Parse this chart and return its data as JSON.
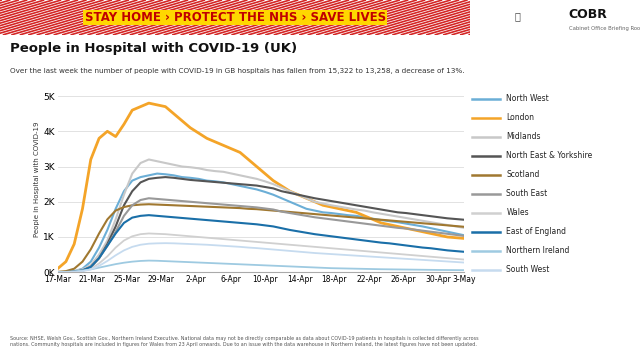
{
  "title": "People in Hospital with COVID-19 (UK)",
  "subtitle": "Over the last week the number of people with COVID-19 in GB hospitals has fallen from 15,322 to 13,258, a decrease of 13%.",
  "ylabel": "People in Hospital with COVID-19",
  "banner_text": "STAY HOME › PROTECT THE NHS › SAVE LIVES",
  "cobr_text": "COBR",
  "cobr_sub": "Cabinet Office Briefing Rooms",
  "footnote": "Source: NHSE, Welsh Gov., Scottish Gov., Northern Ireland Executive. National data may not be directly comparable as data about COVID-19 patients in hospitals is collected differently across\nnations. Community hospitals are included in figures for Wales from 23 April onwards. Due to an issue with the data warehouse in Northern Ireland, the latest figures have not been updated.",
  "x_labels": [
    "17-Mar",
    "21-Mar",
    "25-Mar",
    "29-Mar",
    "2-Apr",
    "6-Apr",
    "10-Apr",
    "14-Apr",
    "18-Apr",
    "22-Apr",
    "26-Apr",
    "30-Apr",
    "3-May"
  ],
  "yticks": [
    0,
    1000,
    2000,
    3000,
    4000,
    5000
  ],
  "ytick_labels": [
    "0K",
    "1K",
    "2K",
    "3K",
    "4K",
    "5K"
  ],
  "series": {
    "North West": {
      "color": "#6baed6",
      "linewidth": 1.5,
      "values": [
        0,
        10,
        30,
        100,
        300,
        700,
        1200,
        1800,
        2300,
        2600,
        2700,
        2750,
        2800,
        2780,
        2750,
        2700,
        2680,
        2650,
        2600,
        2580,
        2550,
        2500,
        2450,
        2400,
        2350,
        2280,
        2200,
        2100,
        2000,
        1900,
        1800,
        1750,
        1700,
        1680,
        1650,
        1620,
        1600,
        1560,
        1520,
        1480,
        1450,
        1420,
        1380,
        1340,
        1300,
        1250,
        1200,
        1150,
        1100,
        1050
      ]
    },
    "London": {
      "color": "#f4a428",
      "linewidth": 2.0,
      "values": [
        100,
        300,
        800,
        1800,
        3200,
        3800,
        4000,
        3850,
        4200,
        4600,
        4700,
        4800,
        4750,
        4700,
        4500,
        4300,
        4100,
        3950,
        3800,
        3700,
        3600,
        3500,
        3400,
        3200,
        3000,
        2800,
        2600,
        2450,
        2300,
        2200,
        2100,
        2000,
        1900,
        1850,
        1800,
        1750,
        1700,
        1600,
        1500,
        1400,
        1350,
        1300,
        1250,
        1200,
        1150,
        1100,
        1050,
        1000,
        980,
        960
      ]
    },
    "Midlands": {
      "color": "#c8c8c8",
      "linewidth": 1.5,
      "values": [
        0,
        10,
        30,
        80,
        200,
        500,
        900,
        1500,
        2200,
        2800,
        3100,
        3200,
        3150,
        3100,
        3050,
        3000,
        2980,
        2950,
        2900,
        2870,
        2850,
        2800,
        2750,
        2700,
        2650,
        2580,
        2500,
        2400,
        2300,
        2200,
        2100,
        2000,
        1950,
        1900,
        1860,
        1820,
        1780,
        1750,
        1700,
        1660,
        1620,
        1580,
        1540,
        1500,
        1460,
        1420,
        1380,
        1340,
        1300,
        1260
      ]
    },
    "North East & Yorkshire": {
      "color": "#555555",
      "linewidth": 1.5,
      "values": [
        0,
        5,
        15,
        50,
        150,
        400,
        800,
        1300,
        1900,
        2300,
        2550,
        2650,
        2680,
        2700,
        2680,
        2650,
        2620,
        2600,
        2580,
        2560,
        2540,
        2520,
        2500,
        2480,
        2460,
        2420,
        2380,
        2300,
        2250,
        2200,
        2150,
        2100,
        2060,
        2020,
        1980,
        1940,
        1900,
        1860,
        1820,
        1780,
        1740,
        1700,
        1680,
        1650,
        1620,
        1590,
        1560,
        1530,
        1510,
        1490
      ]
    },
    "Scotland": {
      "color": "#a07830",
      "linewidth": 1.5,
      "values": [
        10,
        30,
        100,
        300,
        650,
        1100,
        1500,
        1750,
        1850,
        1900,
        1920,
        1930,
        1920,
        1910,
        1900,
        1890,
        1880,
        1870,
        1860,
        1850,
        1840,
        1830,
        1820,
        1800,
        1790,
        1770,
        1750,
        1730,
        1710,
        1690,
        1670,
        1650,
        1630,
        1610,
        1590,
        1570,
        1550,
        1530,
        1510,
        1490,
        1470,
        1450,
        1430,
        1410,
        1390,
        1370,
        1350,
        1330,
        1310,
        1290
      ]
    },
    "South East": {
      "color": "#999999",
      "linewidth": 1.5,
      "values": [
        0,
        5,
        15,
        50,
        150,
        400,
        750,
        1150,
        1600,
        1900,
        2050,
        2100,
        2080,
        2060,
        2040,
        2020,
        2000,
        1980,
        1960,
        1940,
        1920,
        1900,
        1880,
        1860,
        1840,
        1810,
        1780,
        1720,
        1680,
        1640,
        1600,
        1560,
        1530,
        1500,
        1470,
        1440,
        1410,
        1380,
        1350,
        1320,
        1290,
        1260,
        1240,
        1210,
        1180,
        1150,
        1120,
        1090,
        1060,
        1030
      ]
    },
    "Wales": {
      "color": "#d0d0d0",
      "linewidth": 1.3,
      "values": [
        0,
        5,
        15,
        40,
        100,
        250,
        450,
        700,
        900,
        1020,
        1080,
        1100,
        1090,
        1080,
        1060,
        1040,
        1020,
        1000,
        980,
        960,
        940,
        920,
        900,
        880,
        860,
        840,
        820,
        800,
        780,
        760,
        740,
        720,
        700,
        680,
        660,
        640,
        620,
        600,
        580,
        560,
        540,
        520,
        500,
        480,
        460,
        440,
        420,
        400,
        380,
        360
      ]
    },
    "East of England": {
      "color": "#1a6fa8",
      "linewidth": 1.5,
      "values": [
        0,
        5,
        15,
        50,
        150,
        400,
        750,
        1100,
        1400,
        1550,
        1600,
        1620,
        1600,
        1580,
        1560,
        1540,
        1520,
        1500,
        1480,
        1460,
        1440,
        1420,
        1400,
        1380,
        1360,
        1330,
        1300,
        1250,
        1200,
        1160,
        1120,
        1080,
        1050,
        1020,
        990,
        960,
        930,
        900,
        870,
        840,
        820,
        790,
        760,
        730,
        700,
        680,
        650,
        620,
        600,
        580
      ]
    },
    "Northern Ireland": {
      "color": "#9ecae1",
      "linewidth": 1.3,
      "values": [
        5,
        10,
        20,
        50,
        80,
        130,
        180,
        230,
        270,
        300,
        320,
        330,
        325,
        315,
        305,
        295,
        285,
        275,
        265,
        255,
        245,
        235,
        225,
        215,
        205,
        195,
        185,
        175,
        165,
        155,
        145,
        135,
        125,
        115,
        110,
        105,
        100,
        95,
        90,
        85,
        82,
        79,
        76,
        73,
        70,
        67,
        64,
        62,
        60,
        58
      ]
    },
    "South West": {
      "color": "#c6dbef",
      "linewidth": 1.3,
      "values": [
        0,
        3,
        10,
        30,
        80,
        180,
        320,
        480,
        620,
        720,
        780,
        810,
        820,
        825,
        820,
        810,
        800,
        790,
        780,
        765,
        750,
        735,
        720,
        700,
        685,
        665,
        645,
        625,
        605,
        585,
        565,
        545,
        530,
        515,
        500,
        485,
        470,
        455,
        440,
        425,
        410,
        395,
        380,
        365,
        350,
        335,
        320,
        305,
        290,
        275
      ]
    }
  },
  "legend_order": [
    "North West",
    "London",
    "Midlands",
    "North East & Yorkshire",
    "Scotland",
    "South East",
    "Wales",
    "East of England",
    "Northern Ireland",
    "South West"
  ],
  "banner_bg": "#FFD700",
  "banner_text_color": "#c00000",
  "background_color": "#ffffff",
  "plot_bg": "#ffffff",
  "stripe_color": "#cc0000"
}
